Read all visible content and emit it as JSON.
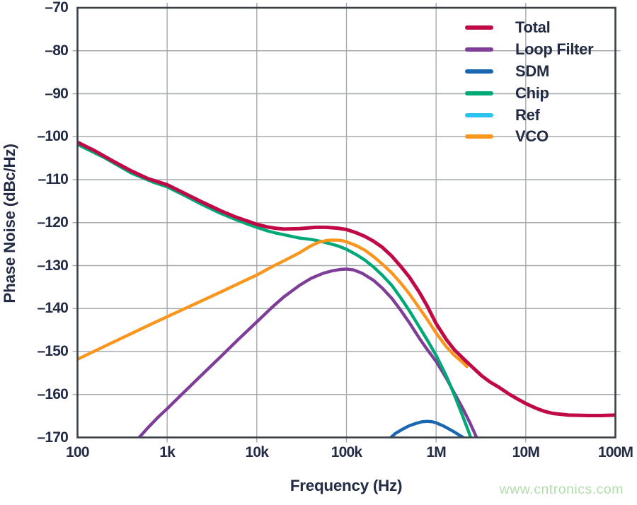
{
  "figure": {
    "watermark": "www.cntronics.com",
    "watermark_color": "#b2ddac",
    "background": "#ffffff",
    "text_color": "#232c44",
    "grid_color": "#a6aaae",
    "border_color": "#3b4046"
  },
  "chart_data": {
    "type": "line",
    "title": "",
    "xlabel": "Frequency (Hz)",
    "ylabel": "Phase Noise (dBc/Hz)",
    "x_scale": "log",
    "xlim": [
      100,
      100000000
    ],
    "ylim": [
      -170,
      -70
    ],
    "grid": true,
    "legend_position": "top-right-inside",
    "x_ticks": [
      {
        "value": 100,
        "label": "100"
      },
      {
        "value": 1000,
        "label": "1k"
      },
      {
        "value": 10000,
        "label": "10k"
      },
      {
        "value": 100000,
        "label": "100k"
      },
      {
        "value": 1000000,
        "label": "1M"
      },
      {
        "value": 10000000,
        "label": "10M"
      },
      {
        "value": 100000000,
        "label": "100M"
      }
    ],
    "y_ticks": [
      {
        "value": -70,
        "label": "–70"
      },
      {
        "value": -80,
        "label": "–80"
      },
      {
        "value": -90,
        "label": "–90"
      },
      {
        "value": -100,
        "label": "–100"
      },
      {
        "value": -110,
        "label": "–110"
      },
      {
        "value": -120,
        "label": "–120"
      },
      {
        "value": -130,
        "label": "–130"
      },
      {
        "value": -140,
        "label": "–140"
      },
      {
        "value": -150,
        "label": "–150"
      },
      {
        "value": -160,
        "label": "–160"
      },
      {
        "value": -170,
        "label": "–170"
      }
    ],
    "x_gridlines": [
      1000,
      10000,
      100000,
      1000000,
      10000000
    ],
    "y_gridlines": [
      -80,
      -90,
      -100,
      -110,
      -120,
      -130,
      -140,
      -150,
      -160
    ],
    "series": [
      {
        "name": "Total",
        "color": "#c00a46",
        "width": 5,
        "z": 5,
        "points": [
          [
            100,
            -101.3
          ],
          [
            150,
            -103.1
          ],
          [
            250,
            -105.7
          ],
          [
            400,
            -108.0
          ],
          [
            600,
            -109.7
          ],
          [
            1000,
            -111.2
          ],
          [
            1500,
            -113.0
          ],
          [
            2500,
            -115.3
          ],
          [
            4000,
            -117.3
          ],
          [
            6000,
            -118.8
          ],
          [
            8000,
            -119.7
          ],
          [
            10000,
            -120.4
          ],
          [
            13000,
            -121.0
          ],
          [
            16000,
            -121.3
          ],
          [
            20000,
            -121.5
          ],
          [
            30000,
            -121.4
          ],
          [
            45000,
            -121.1
          ],
          [
            60000,
            -121.1
          ],
          [
            80000,
            -121.3
          ],
          [
            100000,
            -121.6
          ],
          [
            130000,
            -122.4
          ],
          [
            160000,
            -123.2
          ],
          [
            200000,
            -124.3
          ],
          [
            250000,
            -125.7
          ],
          [
            320000,
            -127.8
          ],
          [
            400000,
            -130.1
          ],
          [
            500000,
            -132.6
          ],
          [
            650000,
            -136.2
          ],
          [
            800000,
            -139.5
          ],
          [
            1000000,
            -143.5
          ],
          [
            1300000,
            -147.2
          ],
          [
            1600000,
            -149.6
          ],
          [
            2000000,
            -151.6
          ],
          [
            2500000,
            -153.5
          ],
          [
            3200000,
            -155.6
          ],
          [
            4000000,
            -157.1
          ],
          [
            5000000,
            -158.3
          ],
          [
            6500000,
            -159.9
          ],
          [
            8000000,
            -161.0
          ],
          [
            10000000,
            -162.1
          ],
          [
            13000000,
            -163.2
          ],
          [
            16000000,
            -163.9
          ],
          [
            20000000,
            -164.4
          ],
          [
            30000000,
            -164.8
          ],
          [
            50000000,
            -164.9
          ],
          [
            70000000,
            -164.9
          ],
          [
            100000000,
            -164.8
          ]
        ]
      },
      {
        "name": "Loop Filter",
        "color": "#7e3e97",
        "width": 4.4,
        "z": 2,
        "points": [
          [
            470,
            -170.4
          ],
          [
            600,
            -167.9
          ],
          [
            800,
            -165.2
          ],
          [
            1000,
            -163.3
          ],
          [
            1500,
            -159.7
          ],
          [
            2500,
            -155.2
          ],
          [
            4000,
            -151.1
          ],
          [
            6000,
            -147.5
          ],
          [
            10000,
            -143.1
          ],
          [
            15000,
            -139.6
          ],
          [
            20000,
            -137.3
          ],
          [
            30000,
            -134.6
          ],
          [
            40000,
            -133.0
          ],
          [
            55000,
            -131.8
          ],
          [
            70000,
            -131.2
          ],
          [
            85000,
            -130.9
          ],
          [
            100000,
            -130.8
          ],
          [
            120000,
            -131.0
          ],
          [
            150000,
            -131.8
          ],
          [
            200000,
            -133.4
          ],
          [
            250000,
            -135.2
          ],
          [
            320000,
            -137.6
          ],
          [
            400000,
            -140.3
          ],
          [
            500000,
            -143.2
          ],
          [
            650000,
            -146.9
          ],
          [
            800000,
            -149.6
          ],
          [
            1000000,
            -152.3
          ],
          [
            1300000,
            -156.2
          ],
          [
            1600000,
            -159.7
          ],
          [
            2000000,
            -163.4
          ],
          [
            2400000,
            -166.7
          ],
          [
            2900000,
            -170.5
          ]
        ]
      },
      {
        "name": "SDM",
        "color": "#1a66b0",
        "width": 4.4,
        "z": 1,
        "points": [
          [
            300000,
            -170.4
          ],
          [
            350000,
            -169.1
          ],
          [
            420000,
            -168.1
          ],
          [
            500000,
            -167.3
          ],
          [
            600000,
            -166.7
          ],
          [
            700000,
            -166.35
          ],
          [
            800000,
            -166.25
          ],
          [
            900000,
            -166.35
          ],
          [
            1000000,
            -166.6
          ],
          [
            1200000,
            -167.3
          ],
          [
            1500000,
            -168.4
          ],
          [
            1800000,
            -169.4
          ],
          [
            2200000,
            -170.5
          ]
        ]
      },
      {
        "name": "Chip",
        "color": "#00a878",
        "width": 4.4,
        "z": 3,
        "points": [
          [
            100,
            -101.8
          ],
          [
            200,
            -104.9
          ],
          [
            400,
            -108.5
          ],
          [
            700,
            -110.6
          ],
          [
            1000,
            -111.7
          ],
          [
            1500,
            -113.5
          ],
          [
            2500,
            -115.9
          ],
          [
            4000,
            -117.9
          ],
          [
            6000,
            -119.4
          ],
          [
            8000,
            -120.4
          ],
          [
            10000,
            -121.1
          ],
          [
            13000,
            -121.9
          ],
          [
            16000,
            -122.4
          ],
          [
            20000,
            -122.8
          ],
          [
            30000,
            -123.6
          ],
          [
            40000,
            -123.9
          ],
          [
            50000,
            -124.3
          ],
          [
            60000,
            -124.7
          ],
          [
            80000,
            -125.4
          ],
          [
            100000,
            -126.2
          ],
          [
            130000,
            -127.5
          ],
          [
            160000,
            -128.7
          ],
          [
            200000,
            -130.3
          ],
          [
            250000,
            -132.2
          ],
          [
            320000,
            -134.6
          ],
          [
            400000,
            -137.4
          ],
          [
            500000,
            -140.4
          ],
          [
            650000,
            -144.3
          ],
          [
            800000,
            -147.4
          ],
          [
            1000000,
            -150.9
          ],
          [
            1300000,
            -155.7
          ],
          [
            1600000,
            -160.1
          ],
          [
            2000000,
            -165.3
          ],
          [
            2300000,
            -168.6
          ],
          [
            2480000,
            -170.5
          ]
        ]
      },
      {
        "name": "Ref",
        "color": "#2ac2ef",
        "width": 4.4,
        "z": 0,
        "points": [],
        "note": "below plot range (< -170 dBc/Hz); appears in legend only"
      },
      {
        "name": "VCO",
        "color": "#f8961d",
        "width": 4.4,
        "z": 4,
        "points": [
          [
            100,
            -151.8
          ],
          [
            200,
            -148.8
          ],
          [
            400,
            -145.8
          ],
          [
            700,
            -143.4
          ],
          [
            1000,
            -141.9
          ],
          [
            2000,
            -139.0
          ],
          [
            4000,
            -136.1
          ],
          [
            7000,
            -133.7
          ],
          [
            10000,
            -132.2
          ],
          [
            15000,
            -130.2
          ],
          [
            20000,
            -128.9
          ],
          [
            30000,
            -127.0
          ],
          [
            40000,
            -125.4
          ],
          [
            50000,
            -124.5
          ],
          [
            60000,
            -124.15
          ],
          [
            70000,
            -124.05
          ],
          [
            85000,
            -124.1
          ],
          [
            100000,
            -124.45
          ],
          [
            130000,
            -125.4
          ],
          [
            160000,
            -126.4
          ],
          [
            200000,
            -127.9
          ],
          [
            250000,
            -129.6
          ],
          [
            320000,
            -131.7
          ],
          [
            400000,
            -134.0
          ],
          [
            500000,
            -136.5
          ],
          [
            650000,
            -139.9
          ],
          [
            800000,
            -142.6
          ],
          [
            1000000,
            -145.7
          ],
          [
            1300000,
            -148.9
          ],
          [
            1600000,
            -150.9
          ],
          [
            2000000,
            -152.6
          ],
          [
            2200000,
            -153.5
          ]
        ]
      }
    ]
  }
}
